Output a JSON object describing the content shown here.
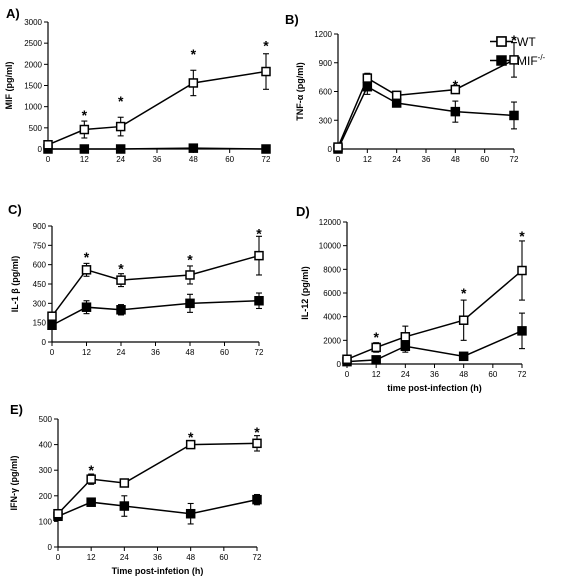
{
  "chart_data": [
    {
      "type": "line",
      "panel_label": "A)",
      "ylabel": "MIF (pg/ml)",
      "xlabel": "",
      "x": [
        0,
        12,
        24,
        48,
        72
      ],
      "xticks": [
        0,
        12,
        24,
        36,
        48,
        60,
        72
      ],
      "xlim": [
        0,
        72
      ],
      "ylim": [
        0,
        3000
      ],
      "yticks": [
        0,
        500,
        1000,
        1500,
        2000,
        2500,
        3000
      ],
      "series": [
        {
          "key": "wt",
          "values": [
            100,
            460,
            530,
            1560,
            1830
          ],
          "errors": [
            80,
            200,
            220,
            300,
            420
          ],
          "marker": "open-square"
        },
        {
          "key": "ko",
          "values": [
            0,
            0,
            0,
            20,
            0
          ],
          "errors": [
            0,
            0,
            0,
            10,
            0
          ],
          "marker": "filled-square"
        }
      ],
      "significance": [
        {
          "x": 12,
          "y": 800
        },
        {
          "x": 24,
          "y": 1130
        },
        {
          "x": 48,
          "y": 2250
        },
        {
          "x": 72,
          "y": 2450
        }
      ],
      "star_label": "*"
    },
    {
      "type": "line",
      "panel_label": "B)",
      "ylabel": "TNF-α (pg/ml)",
      "xlabel": "",
      "x": [
        0,
        12,
        24,
        48,
        72
      ],
      "xticks": [
        0,
        12,
        24,
        36,
        48,
        60,
        72
      ],
      "xlim": [
        0,
        72
      ],
      "ylim": [
        0,
        1200
      ],
      "yticks": [
        0,
        300,
        600,
        900,
        1200
      ],
      "series": [
        {
          "key": "wt",
          "values": [
            20,
            740,
            560,
            620,
            930
          ],
          "errors": [
            10,
            50,
            20,
            30,
            180
          ],
          "marker": "open-square"
        },
        {
          "key": "ko",
          "values": [
            0,
            650,
            480,
            390,
            350
          ],
          "errors": [
            0,
            80,
            20,
            110,
            140
          ],
          "marker": "filled-square"
        }
      ],
      "significance": [
        {
          "x": 48,
          "y": 670
        },
        {
          "x": 72,
          "y": 1140
        }
      ],
      "star_label": "*"
    },
    {
      "type": "line",
      "panel_label": "C)",
      "ylabel": "IL-1 β (pg/ml)",
      "xlabel": "",
      "x": [
        0,
        12,
        24,
        48,
        72
      ],
      "xticks": [
        0,
        12,
        24,
        36,
        48,
        60,
        72
      ],
      "xlim": [
        0,
        72
      ],
      "ylim": [
        0,
        900
      ],
      "yticks": [
        0,
        150,
        300,
        450,
        600,
        750,
        900
      ],
      "series": [
        {
          "key": "wt",
          "values": [
            200,
            560,
            480,
            520,
            670
          ],
          "errors": [
            30,
            50,
            50,
            70,
            150
          ],
          "marker": "open-square"
        },
        {
          "key": "ko",
          "values": [
            130,
            270,
            250,
            300,
            320
          ],
          "errors": [
            20,
            50,
            40,
            70,
            60
          ],
          "marker": "filled-square"
        }
      ],
      "significance": [
        {
          "x": 12,
          "y": 660
        },
        {
          "x": 24,
          "y": 570
        },
        {
          "x": 48,
          "y": 640
        },
        {
          "x": 72,
          "y": 840
        }
      ],
      "star_label": "*"
    },
    {
      "type": "line",
      "panel_label": "D)",
      "ylabel": "IL-12 (pg/ml)",
      "xlabel": "time post-infection (h)",
      "x": [
        0,
        12,
        24,
        48,
        72
      ],
      "xticks": [
        0,
        12,
        24,
        36,
        48,
        60,
        72
      ],
      "xlim": [
        0,
        72
      ],
      "ylim": [
        0,
        12000
      ],
      "yticks": [
        0,
        2000,
        4000,
        6000,
        8000,
        10000,
        12000
      ],
      "series": [
        {
          "key": "wt",
          "values": [
            400,
            1400,
            2300,
            3700,
            7900
          ],
          "errors": [
            100,
            400,
            900,
            1700,
            2500
          ],
          "marker": "open-square"
        },
        {
          "key": "ko",
          "values": [
            200,
            350,
            1500,
            650,
            2800
          ],
          "errors": [
            100,
            100,
            500,
            150,
            1500
          ],
          "marker": "filled-square"
        }
      ],
      "significance": [
        {
          "x": 12,
          "y": 2300
        },
        {
          "x": 48,
          "y": 6000
        },
        {
          "x": 72,
          "y": 10800
        }
      ],
      "star_label": "*"
    },
    {
      "type": "line",
      "panel_label": "E)",
      "ylabel": "IFN-γ (pg/ml)",
      "xlabel": "Time post-infetion (h)",
      "x": [
        0,
        12,
        24,
        48,
        72
      ],
      "xticks": [
        0,
        12,
        24,
        36,
        48,
        60,
        72
      ],
      "xlim": [
        0,
        72
      ],
      "ylim": [
        0,
        500
      ],
      "yticks": [
        0,
        100,
        200,
        300,
        400,
        500
      ],
      "series": [
        {
          "key": "wt",
          "values": [
            130,
            265,
            250,
            400,
            405
          ],
          "errors": [
            15,
            20,
            15,
            15,
            30
          ],
          "marker": "open-square"
        },
        {
          "key": "ko",
          "values": [
            120,
            175,
            160,
            130,
            185
          ],
          "errors": [
            15,
            15,
            40,
            40,
            20
          ],
          "marker": "filled-square"
        }
      ],
      "significance": [
        {
          "x": 12,
          "y": 300
        },
        {
          "x": 48,
          "y": 430
        },
        {
          "x": 72,
          "y": 450
        }
      ],
      "star_label": "*"
    }
  ],
  "legend": {
    "wt": "WT",
    "ko": "MIF",
    "ko_superscript": "-/-"
  }
}
